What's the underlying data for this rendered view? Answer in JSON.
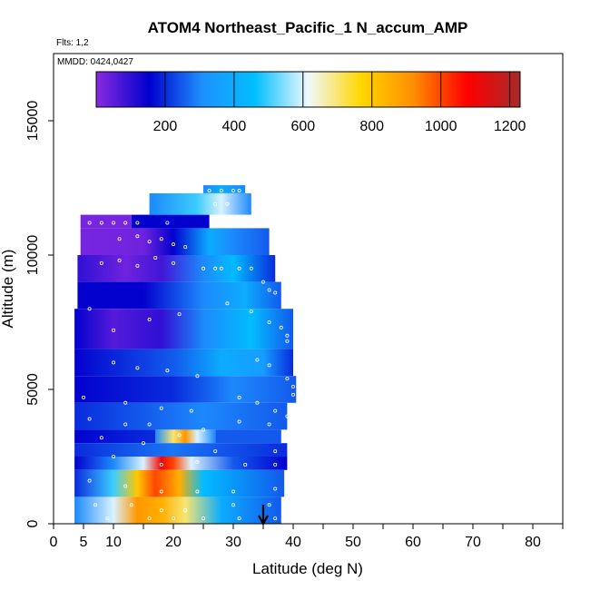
{
  "chart_data": {
    "type": "heatmap",
    "title": "ATOM4 Northeast_Pacific_1 N_accum_AMP",
    "annotations": [
      "Flts: 1,2",
      "MMDD: 0424,0427"
    ],
    "xlabel": "Latitude (deg N)",
    "ylabel": "Altitude (m)",
    "xlim": [
      0,
      85
    ],
    "ylim": [
      0,
      17500
    ],
    "x_ticks": [
      0,
      5,
      10,
      20,
      30,
      40,
      50,
      60,
      70,
      80
    ],
    "y_ticks": [
      0,
      5000,
      10000,
      15000
    ],
    "colorbar": {
      "range": [
        0,
        1230
      ],
      "ticks": [
        200,
        400,
        600,
        800,
        1000,
        1200
      ],
      "colors": [
        "#8a2be2",
        "#0000cd",
        "#1e90ff",
        "#00bfff",
        "#f0f8ff",
        "#ffd700",
        "#ff8c00",
        "#ff0000",
        "#a52a2a"
      ]
    },
    "marker_arrow_lat": 35,
    "bands": [
      {
        "alt": [
          11000,
          11500
        ],
        "lat": [
          4.5,
          13
        ],
        "profile": [
          [
            4.5,
            20
          ],
          [
            13,
            20
          ]
        ]
      },
      {
        "alt": [
          11000,
          11500
        ],
        "lat": [
          13,
          26
        ],
        "profile": [
          [
            13,
            150
          ],
          [
            26,
            150
          ]
        ]
      },
      {
        "alt": [
          12300,
          12600
        ],
        "lat": [
          25,
          32
        ],
        "profile": [
          [
            25,
            300
          ],
          [
            28,
            400
          ],
          [
            32,
            300
          ]
        ]
      },
      {
        "alt": [
          11500,
          12300
        ],
        "lat": [
          16,
          33
        ],
        "profile": [
          [
            16,
            300
          ],
          [
            24,
            500
          ],
          [
            28,
            600
          ],
          [
            33,
            300
          ]
        ]
      },
      {
        "alt": [
          10000,
          11000
        ],
        "lat": [
          4.5,
          36
        ],
        "profile": [
          [
            4.5,
            20
          ],
          [
            15,
            30
          ],
          [
            20,
            150
          ],
          [
            26,
            400
          ],
          [
            30,
            300
          ],
          [
            36,
            250
          ]
        ]
      },
      {
        "alt": [
          9000,
          10000
        ],
        "lat": [
          4,
          37
        ],
        "profile": [
          [
            4,
            100
          ],
          [
            12,
            30
          ],
          [
            18,
            80
          ],
          [
            25,
            300
          ],
          [
            30,
            450
          ],
          [
            37,
            200
          ]
        ]
      },
      {
        "alt": [
          8000,
          9000
        ],
        "lat": [
          4,
          38
        ],
        "profile": [
          [
            4,
            150
          ],
          [
            15,
            150
          ],
          [
            25,
            300
          ],
          [
            32,
            400
          ],
          [
            38,
            250
          ]
        ]
      },
      {
        "alt": [
          6500,
          8000
        ],
        "lat": [
          3.5,
          40
        ],
        "profile": [
          [
            3.5,
            150
          ],
          [
            10,
            60
          ],
          [
            18,
            100
          ],
          [
            25,
            300
          ],
          [
            33,
            450
          ],
          [
            40,
            250
          ]
        ]
      },
      {
        "alt": [
          5500,
          6500
        ],
        "lat": [
          3.5,
          40
        ],
        "profile": [
          [
            3.5,
            150
          ],
          [
            20,
            250
          ],
          [
            28,
            400
          ],
          [
            35,
            350
          ],
          [
            40,
            200
          ]
        ]
      },
      {
        "alt": [
          4500,
          5500
        ],
        "lat": [
          3.5,
          40.5
        ],
        "profile": [
          [
            3.5,
            150
          ],
          [
            20,
            200
          ],
          [
            30,
            300
          ],
          [
            40.5,
            250
          ]
        ]
      },
      {
        "alt": [
          3500,
          4500
        ],
        "lat": [
          3.5,
          39
        ],
        "profile": [
          [
            3.5,
            200
          ],
          [
            15,
            250
          ],
          [
            25,
            300
          ],
          [
            39,
            250
          ]
        ]
      },
      {
        "alt": [
          3000,
          3500
        ],
        "lat": [
          17,
          27
        ],
        "profile": [
          [
            17,
            300
          ],
          [
            20,
            700
          ],
          [
            22,
            900
          ],
          [
            24,
            600
          ],
          [
            27,
            300
          ]
        ]
      },
      {
        "alt": [
          3000,
          3500
        ],
        "lat": [
          3.5,
          17
        ],
        "profile": [
          [
            3.5,
            150
          ],
          [
            17,
            200
          ]
        ]
      },
      {
        "alt": [
          3000,
          3500
        ],
        "lat": [
          27,
          38
        ],
        "profile": [
          [
            27,
            250
          ],
          [
            38,
            250
          ]
        ]
      },
      {
        "alt": [
          2500,
          3000
        ],
        "lat": [
          3.5,
          39
        ],
        "profile": [
          [
            3.5,
            200
          ],
          [
            20,
            280
          ],
          [
            39,
            200
          ]
        ]
      },
      {
        "alt": [
          2000,
          2500
        ],
        "lat": [
          3.5,
          39
        ],
        "profile": [
          [
            3.5,
            150
          ],
          [
            10,
            300
          ],
          [
            15,
            600
          ],
          [
            18,
            1100
          ],
          [
            20,
            1000
          ],
          [
            23,
            600
          ],
          [
            30,
            250
          ],
          [
            39,
            150
          ]
        ]
      },
      {
        "alt": [
          1000,
          2000
        ],
        "lat": [
          3.5,
          38.5
        ],
        "profile": [
          [
            3.5,
            200
          ],
          [
            10,
            500
          ],
          [
            14,
            800
          ],
          [
            17,
            1000
          ],
          [
            21,
            850
          ],
          [
            25,
            450
          ],
          [
            38.5,
            250
          ]
        ]
      },
      {
        "alt": [
          0,
          1000
        ],
        "lat": [
          3.5,
          38
        ],
        "profile": [
          [
            3.5,
            300
          ],
          [
            10,
            600
          ],
          [
            14,
            900
          ],
          [
            18,
            850
          ],
          [
            22,
            700
          ],
          [
            28,
            400
          ],
          [
            38,
            250
          ]
        ]
      }
    ],
    "samples": [
      [
        6,
        11200
      ],
      [
        8,
        11200
      ],
      [
        10,
        11200
      ],
      [
        12,
        11200
      ],
      [
        14,
        11200
      ],
      [
        19,
        11200
      ],
      [
        26,
        12400
      ],
      [
        28,
        12400
      ],
      [
        30,
        12400
      ],
      [
        31,
        12400
      ],
      [
        27,
        11900
      ],
      [
        29,
        11900
      ],
      [
        11,
        10600
      ],
      [
        14,
        10700
      ],
      [
        16,
        10500
      ],
      [
        18,
        10600
      ],
      [
        20,
        10400
      ],
      [
        22,
        10300
      ],
      [
        8,
        9700
      ],
      [
        11,
        9800
      ],
      [
        14,
        9600
      ],
      [
        17,
        9900
      ],
      [
        20,
        9700
      ],
      [
        25,
        9500
      ],
      [
        27,
        9500
      ],
      [
        28,
        9500
      ],
      [
        31,
        9500
      ],
      [
        33,
        9500
      ],
      [
        35,
        9000
      ],
      [
        36,
        8700
      ],
      [
        37,
        8600
      ],
      [
        6,
        8000
      ],
      [
        10,
        7200
      ],
      [
        16,
        7600
      ],
      [
        21,
        7800
      ],
      [
        29,
        8200
      ],
      [
        33,
        7900
      ],
      [
        36,
        7500
      ],
      [
        38,
        7300
      ],
      [
        39,
        7000
      ],
      [
        39,
        6800
      ],
      [
        10,
        6000
      ],
      [
        14,
        5800
      ],
      [
        19,
        5700
      ],
      [
        24,
        5500
      ],
      [
        34,
        6100
      ],
      [
        36,
        5900
      ],
      [
        39,
        5400
      ],
      [
        40,
        5100
      ],
      [
        40,
        4800
      ],
      [
        5,
        4700
      ],
      [
        12,
        4500
      ],
      [
        18,
        4300
      ],
      [
        23,
        4200
      ],
      [
        31,
        4700
      ],
      [
        34,
        4500
      ],
      [
        37,
        4200
      ],
      [
        39,
        4000
      ],
      [
        6,
        3900
      ],
      [
        12,
        3700
      ],
      [
        16,
        3700
      ],
      [
        25,
        3500
      ],
      [
        31,
        3800
      ],
      [
        36,
        3700
      ],
      [
        8,
        3200
      ],
      [
        15,
        3000
      ],
      [
        21,
        3300
      ],
      [
        27,
        2700
      ],
      [
        37,
        2700
      ],
      [
        10,
        2500
      ],
      [
        18,
        2200
      ],
      [
        24,
        2300
      ],
      [
        32,
        2200
      ],
      [
        37,
        2200
      ],
      [
        6,
        1600
      ],
      [
        12,
        1400
      ],
      [
        18,
        1200
      ],
      [
        24,
        1200
      ],
      [
        30,
        1200
      ],
      [
        37,
        1300
      ],
      [
        7,
        700
      ],
      [
        13,
        700
      ],
      [
        18,
        500
      ],
      [
        22,
        500
      ],
      [
        30,
        700
      ],
      [
        36,
        700
      ],
      [
        9,
        200
      ],
      [
        16,
        200
      ],
      [
        20,
        200
      ],
      [
        25,
        200
      ],
      [
        31,
        200
      ],
      [
        37,
        200
      ]
    ]
  }
}
